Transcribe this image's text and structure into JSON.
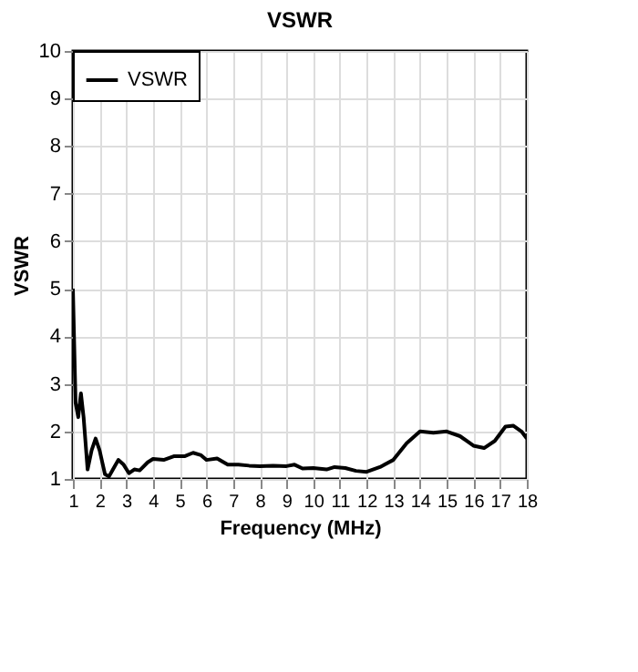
{
  "chart_data": {
    "type": "line",
    "title": "VSWR",
    "xlabel": "Frequency (MHz)",
    "ylabel": "VSWR",
    "x": [
      1.0,
      1.1,
      1.2,
      1.3,
      1.4,
      1.55,
      1.7,
      1.85,
      2.0,
      2.2,
      2.35,
      2.5,
      2.7,
      2.9,
      3.1,
      3.3,
      3.5,
      3.8,
      4.0,
      4.4,
      4.8,
      5.2,
      5.5,
      5.8,
      6.0,
      6.4,
      6.8,
      7.2,
      7.6,
      8.0,
      8.5,
      9.0,
      9.3,
      9.6,
      10.0,
      10.5,
      10.8,
      11.2,
      11.6,
      12.0,
      12.5,
      13.0,
      13.5,
      14.0,
      14.5,
      15.0,
      15.5,
      16.0,
      16.4,
      16.8,
      17.2,
      17.5,
      17.8,
      18.0
    ],
    "series": [
      {
        "name": "VSWR",
        "color": "#000000",
        "values": [
          5.0,
          2.6,
          2.3,
          2.8,
          2.3,
          1.2,
          1.6,
          1.85,
          1.6,
          1.1,
          1.05,
          1.2,
          1.4,
          1.3,
          1.12,
          1.2,
          1.18,
          1.35,
          1.42,
          1.4,
          1.48,
          1.48,
          1.55,
          1.5,
          1.4,
          1.43,
          1.3,
          1.3,
          1.28,
          1.27,
          1.28,
          1.27,
          1.3,
          1.22,
          1.23,
          1.2,
          1.25,
          1.23,
          1.17,
          1.15,
          1.25,
          1.4,
          1.75,
          2.0,
          1.97,
          2.0,
          1.9,
          1.7,
          1.65,
          1.8,
          2.1,
          2.12,
          2.0,
          1.85
        ]
      }
    ],
    "xlim": [
      1,
      18
    ],
    "xticks": [
      1,
      2,
      3,
      4,
      5,
      6,
      7,
      8,
      9,
      10,
      11,
      12,
      13,
      14,
      15,
      16,
      17,
      18
    ],
    "ylim": [
      1,
      10
    ],
    "yticks": [
      1,
      2,
      3,
      4,
      5,
      6,
      7,
      8,
      9,
      10
    ],
    "grid": true,
    "legend": "top left",
    "marker": "none",
    "line_style": "solid"
  }
}
